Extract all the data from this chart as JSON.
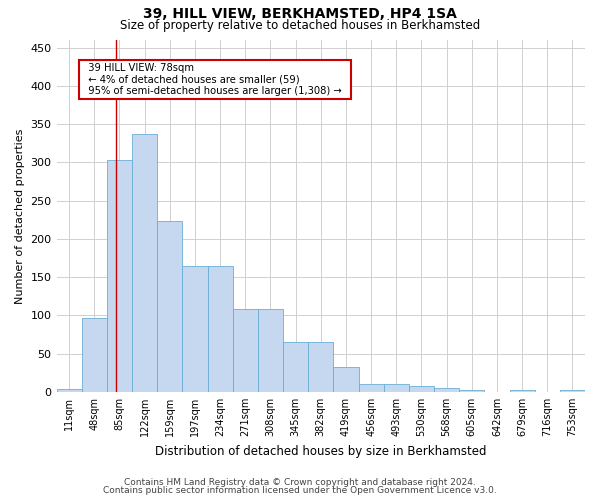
{
  "title": "39, HILL VIEW, BERKHAMSTED, HP4 1SA",
  "subtitle": "Size of property relative to detached houses in Berkhamsted",
  "xlabel": "Distribution of detached houses by size in Berkhamsted",
  "ylabel": "Number of detached properties",
  "footer_line1": "Contains HM Land Registry data © Crown copyright and database right 2024.",
  "footer_line2": "Contains public sector information licensed under the Open Government Licence v3.0.",
  "bar_labels": [
    "11sqm",
    "48sqm",
    "85sqm",
    "122sqm",
    "159sqm",
    "197sqm",
    "234sqm",
    "271sqm",
    "308sqm",
    "345sqm",
    "382sqm",
    "419sqm",
    "456sqm",
    "493sqm",
    "530sqm",
    "568sqm",
    "605sqm",
    "642sqm",
    "679sqm",
    "716sqm",
    "753sqm"
  ],
  "bar_values": [
    4,
    97,
    303,
    337,
    224,
    165,
    165,
    109,
    109,
    65,
    65,
    32,
    11,
    10,
    8,
    5,
    2,
    0,
    2,
    0,
    2
  ],
  "bar_color": "#c5d8ef",
  "bar_edge_color": "#6aadd5",
  "ylim": [
    0,
    460
  ],
  "yticks": [
    0,
    50,
    100,
    150,
    200,
    250,
    300,
    350,
    400,
    450
  ],
  "red_line_x": 1.87,
  "annotation_text_line1": "39 HILL VIEW: 78sqm",
  "annotation_text_line2": "← 4% of detached houses are smaller (59)",
  "annotation_text_line3": "95% of semi-detached houses are larger (1,308) →",
  "annotation_box_color": "#ffffff",
  "annotation_border_color": "#cc0000",
  "background_color": "#ffffff",
  "grid_color": "#d0d0d0"
}
